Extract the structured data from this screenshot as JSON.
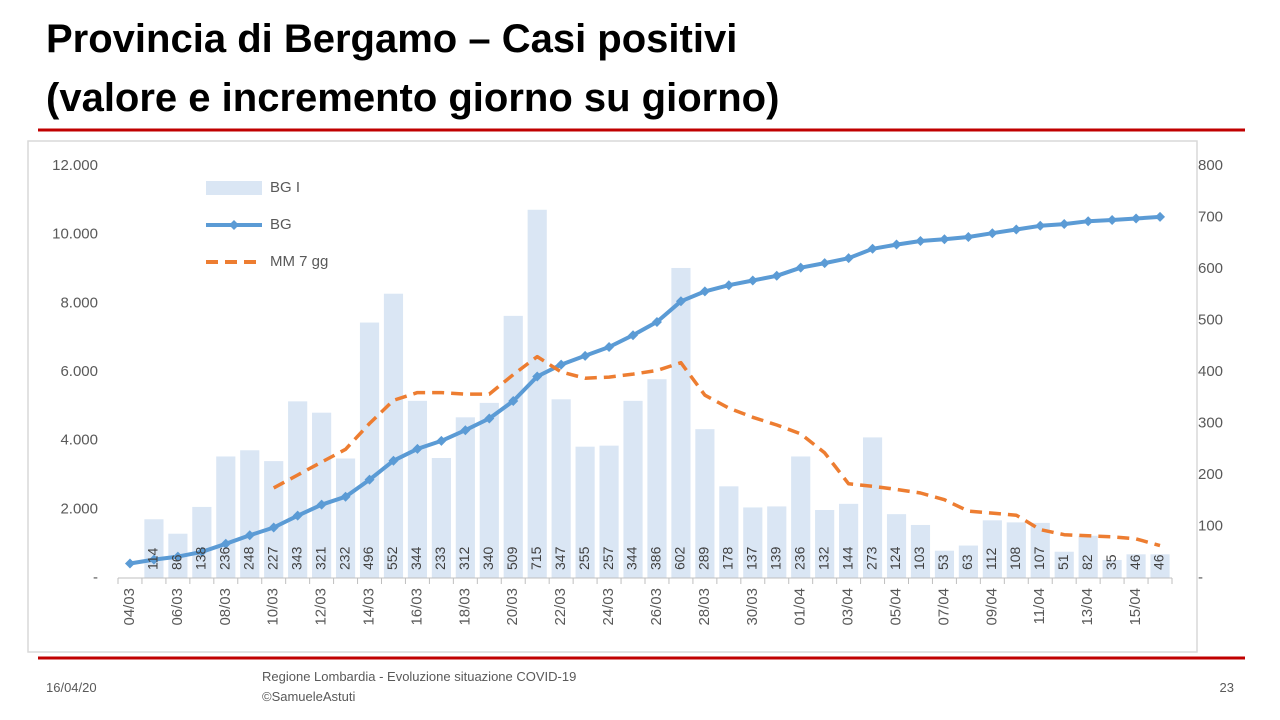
{
  "chart_data": {
    "type": "bar",
    "title": "Provincia di Bergamo – Casi positivi",
    "subtitle": "(valore e incremento giorno su giorno)",
    "categories": [
      "04/03",
      null,
      "06/03",
      null,
      "08/03",
      null,
      "10/03",
      null,
      "12/03",
      null,
      "14/03",
      null,
      "16/03",
      null,
      "18/03",
      null,
      "20/03",
      null,
      "22/03",
      null,
      "24/03",
      null,
      "26/03",
      null,
      "28/03",
      null,
      "30/03",
      null,
      "01/04",
      null,
      "03/04",
      null,
      "05/04",
      null,
      "07/04",
      null,
      "09/04",
      null,
      "11/04",
      null,
      "13/04",
      null,
      "15/04",
      null
    ],
    "series": [
      {
        "name": "BG I",
        "type": "bar",
        "axis": "y2",
        "color": "#dae6f4",
        "values": [
          null,
          114,
          86,
          138,
          236,
          248,
          227,
          343,
          321,
          232,
          496,
          552,
          344,
          233,
          312,
          340,
          509,
          715,
          347,
          255,
          257,
          344,
          386,
          602,
          289,
          178,
          137,
          139,
          236,
          132,
          144,
          273,
          124,
          103,
          53,
          63,
          112,
          108,
          107,
          51,
          82,
          35,
          46,
          46
        ]
      },
      {
        "name": "BG",
        "type": "line",
        "axis": "y",
        "color": "#5b9bd5",
        "marker": "diamond",
        "values": [
          423,
          537,
          623,
          761,
          997,
          1245,
          1472,
          1815,
          2136,
          2368,
          2864,
          3416,
          3760,
          3993,
          4305,
          4645,
          5154,
          5869,
          6216,
          6471,
          6728,
          7072,
          7458,
          8060,
          8349,
          8527,
          8664,
          8803,
          9039,
          9171,
          9315,
          9588,
          9712,
          9815,
          9868,
          9931,
          10043,
          10151,
          10258,
          10309,
          10391,
          10426,
          10472,
          10518
        ]
      },
      {
        "name": "MM 7 gg",
        "type": "line",
        "axis": "y2",
        "color": "#ed7d31",
        "dashed": true,
        "values": [
          null,
          null,
          null,
          null,
          null,
          null,
          175,
          200,
          225,
          250,
          300,
          345,
          360,
          360,
          357,
          357,
          395,
          430,
          400,
          388,
          390,
          396,
          403,
          418,
          355,
          330,
          312,
          297,
          280,
          243,
          183,
          178,
          172,
          165,
          152,
          130,
          126,
          122,
          94,
          84,
          82,
          80,
          76,
          63
        ]
      }
    ],
    "ylim": [
      0,
      12000
    ],
    "yticks": [
      {
        "value": 0,
        "label": "-"
      },
      {
        "value": 2000,
        "label": "2.000"
      },
      {
        "value": 4000,
        "label": "4.000"
      },
      {
        "value": 6000,
        "label": "6.000"
      },
      {
        "value": 8000,
        "label": "8.000"
      },
      {
        "value": 10000,
        "label": "10.000"
      },
      {
        "value": 12000,
        "label": "12.000"
      }
    ],
    "y2lim": [
      0,
      800
    ],
    "y2ticks": [
      {
        "value": 0,
        "label": "-"
      },
      100,
      200,
      300,
      400,
      500,
      600,
      700,
      800
    ],
    "grid": false,
    "legend": "top-left",
    "data_labels": true
  },
  "footer": {
    "date": "16/04/20",
    "source": "Regione Lombardia - Evoluzione situazione COVID-19",
    "credit": "©SamueleAstuti",
    "page": "23"
  }
}
